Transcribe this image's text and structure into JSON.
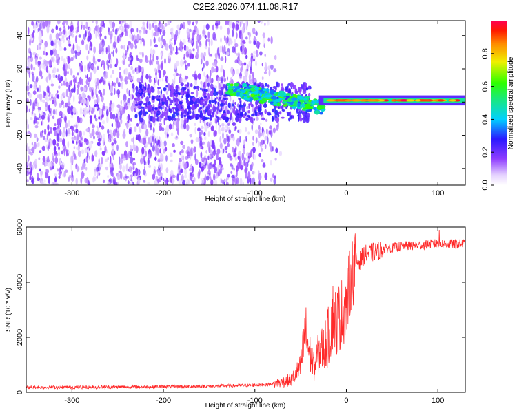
{
  "title": "C2E2.2026.074.11.08.R17",
  "chart_data": [
    {
      "type": "heatmap",
      "xlabel": "Height of straight line (km)",
      "ylabel": "Frequency (Hz)",
      "xlim": [
        -350,
        130
      ],
      "ylim": [
        -50,
        49
      ],
      "xticks": [
        -300,
        -200,
        -100,
        0,
        100
      ],
      "yticks": [
        -40,
        -20,
        0,
        20,
        40
      ],
      "colorbar": {
        "label": "Normalized spectral amplitude",
        "range": [
          0,
          1
        ],
        "ticks": [
          0.0,
          0.2,
          0.4,
          0.6,
          0.8
        ]
      },
      "description_series": [
        {
          "name": "diffuse noise region",
          "x_range": [
            -350,
            -75
          ],
          "freq_range": [
            -50,
            49
          ],
          "amplitude": 0.15
        },
        {
          "name": "converging band",
          "x_range": [
            -130,
            -25
          ],
          "freq_center": [
            8,
            -3
          ],
          "amplitude": 0.45
        },
        {
          "name": "carrier line",
          "x_range": [
            -25,
            130
          ],
          "freq_center": 1,
          "amplitude": 0.95
        }
      ]
    },
    {
      "type": "line",
      "xlabel": "Height of straight line (km)",
      "ylabel": "SNR (10 * v/v)",
      "xlim": [
        -350,
        130
      ],
      "ylim": [
        0,
        6000
      ],
      "xticks": [
        -300,
        -200,
        -100,
        0,
        100
      ],
      "yticks": [
        0,
        2000,
        4000,
        6000
      ],
      "color": "#ff2a2a",
      "series": [
        {
          "name": "SNR envelope",
          "x": [
            -350,
            -250,
            -150,
            -100,
            -80,
            -60,
            -50,
            -45,
            -40,
            -35,
            -30,
            -25,
            -20,
            -15,
            -10,
            -5,
            0,
            5,
            10,
            15,
            20,
            30,
            40,
            60,
            80,
            100,
            110,
            130
          ],
          "values": [
            180,
            190,
            220,
            260,
            300,
            450,
            900,
            2200,
            1400,
            900,
            1500,
            1600,
            2000,
            2800,
            2600,
            2900,
            3200,
            4200,
            4700,
            4800,
            5000,
            5100,
            5200,
            5300,
            5350,
            5400,
            5380,
            5400
          ]
        }
      ]
    }
  ]
}
